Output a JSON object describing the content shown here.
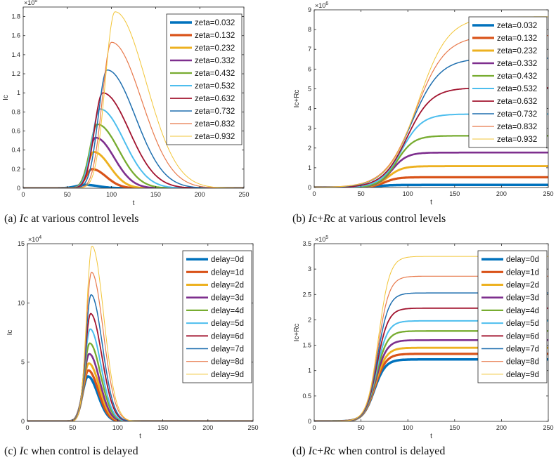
{
  "captions": {
    "a": {
      "prefix": "(a) ",
      "italic": "I",
      "rest": "c at various control levels"
    },
    "b": {
      "prefix": "(b) ",
      "italic": "I",
      "mid": "c+",
      "italic2": "R",
      "rest": "c at various control levels"
    },
    "c": {
      "prefix": "(c) ",
      "italic": "I",
      "rest": "c when control is delayed"
    },
    "d": {
      "prefix": "(d) ",
      "italic": "I",
      "mid": "c+",
      "italic2": "R",
      "rest": "c when control is delayed"
    }
  },
  "palette": [
    "#0072BD",
    "#D95319",
    "#EDB120",
    "#7E2F8E",
    "#77AC30",
    "#4DBEEE",
    "#A2142F",
    "#1F6FAF",
    "#E8794B",
    "#F2C537"
  ],
  "chart_data": [
    {
      "id": "a",
      "type": "line",
      "title": "",
      "xlabel": "t",
      "ylabel": "Ic",
      "xlim": [
        0,
        250
      ],
      "ylim": [
        0,
        1.9
      ],
      "xticks": [
        0,
        50,
        100,
        150,
        200,
        250
      ],
      "yticks": [
        0,
        0.2,
        0.4,
        0.6,
        0.8,
        1,
        1.2,
        1.4,
        1.6,
        1.8
      ],
      "ytick_labels": [
        "0",
        "0.2",
        "0.4",
        "0.6",
        "0.8",
        "1",
        "1.2",
        "1.4",
        "1.6",
        "1.8"
      ],
      "multiplier": "×10^6",
      "legend_position": "top-right",
      "series": [
        {
          "name": "zeta=0.032",
          "shape": "peak",
          "peak": 0.035,
          "peak_t": 70,
          "rise": 10,
          "decay": 15,
          "width": 3.5
        },
        {
          "name": "zeta=0.132",
          "shape": "peak",
          "peak": 0.2,
          "peak_t": 78,
          "rise": 7,
          "decay": 16,
          "width": 3.2
        },
        {
          "name": "zeta=0.232",
          "shape": "peak",
          "peak": 0.38,
          "peak_t": 80,
          "rise": 7.5,
          "decay": 18,
          "width": 2.9
        },
        {
          "name": "zeta=0.332",
          "shape": "peak",
          "peak": 0.53,
          "peak_t": 82,
          "rise": 8,
          "decay": 21,
          "width": 2.6
        },
        {
          "name": "zeta=0.432",
          "shape": "peak",
          "peak": 0.67,
          "peak_t": 84,
          "rise": 8.5,
          "decay": 24,
          "width": 2.3
        },
        {
          "name": "zeta=0.532",
          "shape": "peak",
          "peak": 0.83,
          "peak_t": 87,
          "rise": 9,
          "decay": 27,
          "width": 2.0
        },
        {
          "name": "zeta=0.632",
          "shape": "peak",
          "peak": 1.0,
          "peak_t": 90,
          "rise": 9.5,
          "decay": 30,
          "width": 1.8
        },
        {
          "name": "zeta=0.732",
          "shape": "peak",
          "peak": 1.24,
          "peak_t": 95,
          "rise": 10,
          "decay": 32,
          "width": 1.5
        },
        {
          "name": "zeta=0.832",
          "shape": "peak",
          "peak": 1.53,
          "peak_t": 100,
          "rise": 10.5,
          "decay": 34,
          "width": 1.2
        },
        {
          "name": "zeta=0.932",
          "shape": "peak",
          "peak": 1.85,
          "peak_t": 104,
          "rise": 11,
          "decay": 35,
          "width": 1.0
        }
      ]
    },
    {
      "id": "b",
      "type": "line",
      "title": "",
      "xlabel": "t",
      "ylabel": "Ic+Rc",
      "xlim": [
        0,
        250
      ],
      "ylim": [
        0,
        9
      ],
      "xticks": [
        0,
        50,
        100,
        150,
        200,
        250
      ],
      "yticks": [
        0,
        1,
        2,
        3,
        4,
        5,
        6,
        7,
        8,
        9
      ],
      "ytick_labels": [
        "0",
        "1",
        "2",
        "3",
        "4",
        "5",
        "6",
        "7",
        "8",
        "9"
      ],
      "multiplier": "×10^6",
      "legend_position": "top-right",
      "series": [
        {
          "name": "zeta=0.032",
          "shape": "sigmoid",
          "plateau": 0.13,
          "mid": 68,
          "k": 7,
          "width": 3.5
        },
        {
          "name": "zeta=0.132",
          "shape": "sigmoid",
          "plateau": 0.52,
          "mid": 75,
          "k": 7,
          "width": 3.2
        },
        {
          "name": "zeta=0.232",
          "shape": "sigmoid",
          "plateau": 1.08,
          "mid": 79,
          "k": 7.5,
          "width": 2.9
        },
        {
          "name": "zeta=0.332",
          "shape": "sigmoid",
          "plateau": 1.77,
          "mid": 83,
          "k": 8,
          "width": 2.6
        },
        {
          "name": "zeta=0.432",
          "shape": "sigmoid",
          "plateau": 2.62,
          "mid": 88,
          "k": 9,
          "width": 2.3
        },
        {
          "name": "zeta=0.532",
          "shape": "sigmoid",
          "plateau": 3.72,
          "mid": 93,
          "k": 11,
          "width": 2.0
        },
        {
          "name": "zeta=0.632",
          "shape": "sigmoid",
          "plateau": 5.05,
          "mid": 99,
          "k": 13,
          "width": 1.8
        },
        {
          "name": "zeta=0.732",
          "shape": "sigmoid",
          "plateau": 6.55,
          "mid": 104,
          "k": 15,
          "width": 1.5
        },
        {
          "name": "zeta=0.832",
          "shape": "sigmoid",
          "plateau": 7.7,
          "mid": 108,
          "k": 16,
          "width": 1.2
        },
        {
          "name": "zeta=0.932",
          "shape": "sigmoid",
          "plateau": 8.65,
          "mid": 111,
          "k": 16,
          "width": 1.0
        }
      ]
    },
    {
      "id": "c",
      "type": "line",
      "title": "",
      "xlabel": "t",
      "ylabel": "Ic",
      "xlim": [
        0,
        250
      ],
      "ylim": [
        0,
        15
      ],
      "xticks": [
        0,
        50,
        100,
        150,
        200,
        250
      ],
      "yticks": [
        0,
        5,
        10,
        15
      ],
      "ytick_labels": [
        "0",
        "5",
        "10",
        "15"
      ],
      "multiplier": "×10^4",
      "legend_position": "top-right",
      "series": [
        {
          "name": "delay=0d",
          "shape": "peak",
          "peak": 3.8,
          "peak_t": 67,
          "rise": 6,
          "decay": 11,
          "width": 3.5
        },
        {
          "name": "delay=1d",
          "shape": "peak",
          "peak": 4.3,
          "peak_t": 67.5,
          "rise": 6,
          "decay": 11,
          "width": 3.2
        },
        {
          "name": "delay=2d",
          "shape": "peak",
          "peak": 4.9,
          "peak_t": 68,
          "rise": 6,
          "decay": 11.5,
          "width": 2.9
        },
        {
          "name": "delay=3d",
          "shape": "peak",
          "peak": 5.7,
          "peak_t": 68.5,
          "rise": 6,
          "decay": 11.5,
          "width": 2.6
        },
        {
          "name": "delay=4d",
          "shape": "peak",
          "peak": 6.6,
          "peak_t": 69,
          "rise": 6,
          "decay": 12,
          "width": 2.3
        },
        {
          "name": "delay=5d",
          "shape": "peak",
          "peak": 7.8,
          "peak_t": 69.5,
          "rise": 6,
          "decay": 12,
          "width": 2.0
        },
        {
          "name": "delay=6d",
          "shape": "peak",
          "peak": 9.1,
          "peak_t": 70,
          "rise": 6,
          "decay": 12.5,
          "width": 1.8
        },
        {
          "name": "delay=7d",
          "shape": "peak",
          "peak": 10.7,
          "peak_t": 70.5,
          "rise": 6,
          "decay": 12.5,
          "width": 1.5
        },
        {
          "name": "delay=8d",
          "shape": "peak",
          "peak": 12.6,
          "peak_t": 71,
          "rise": 6,
          "decay": 13,
          "width": 1.2
        },
        {
          "name": "delay=9d",
          "shape": "peak",
          "peak": 14.8,
          "peak_t": 71.5,
          "rise": 6,
          "decay": 13,
          "width": 1.0
        }
      ]
    },
    {
      "id": "d",
      "type": "line",
      "title": "",
      "xlabel": "t",
      "ylabel": "Ic+Rc",
      "xlim": [
        0,
        250
      ],
      "ylim": [
        0,
        3.5
      ],
      "xticks": [
        0,
        50,
        100,
        150,
        200,
        250
      ],
      "yticks": [
        0,
        0.5,
        1,
        1.5,
        2,
        2.5,
        3,
        3.5
      ],
      "ytick_labels": [
        "0",
        "0.5",
        "1",
        "1.5",
        "2",
        "2.5",
        "3",
        "3.5"
      ],
      "multiplier": "×10^5",
      "legend_position": "top-right",
      "series": [
        {
          "name": "delay=0d",
          "shape": "sigmoid",
          "plateau": 1.22,
          "mid": 64,
          "k": 6,
          "width": 3.5
        },
        {
          "name": "delay=1d",
          "shape": "sigmoid",
          "plateau": 1.33,
          "mid": 64.5,
          "k": 6,
          "width": 3.2
        },
        {
          "name": "delay=2d",
          "shape": "sigmoid",
          "plateau": 1.45,
          "mid": 65,
          "k": 6,
          "width": 2.9
        },
        {
          "name": "delay=3d",
          "shape": "sigmoid",
          "plateau": 1.6,
          "mid": 65.5,
          "k": 6,
          "width": 2.6
        },
        {
          "name": "delay=4d",
          "shape": "sigmoid",
          "plateau": 1.78,
          "mid": 66,
          "k": 6,
          "width": 2.3
        },
        {
          "name": "delay=5d",
          "shape": "sigmoid",
          "plateau": 1.98,
          "mid": 66.5,
          "k": 6,
          "width": 2.0
        },
        {
          "name": "delay=6d",
          "shape": "sigmoid",
          "plateau": 2.23,
          "mid": 67,
          "k": 6,
          "width": 1.8
        },
        {
          "name": "delay=7d",
          "shape": "sigmoid",
          "plateau": 2.53,
          "mid": 67.5,
          "k": 6,
          "width": 1.5
        },
        {
          "name": "delay=8d",
          "shape": "sigmoid",
          "plateau": 2.86,
          "mid": 68,
          "k": 6,
          "width": 1.2
        },
        {
          "name": "delay=9d",
          "shape": "sigmoid",
          "plateau": 3.25,
          "mid": 68.5,
          "k": 6,
          "width": 1.0
        }
      ]
    }
  ]
}
